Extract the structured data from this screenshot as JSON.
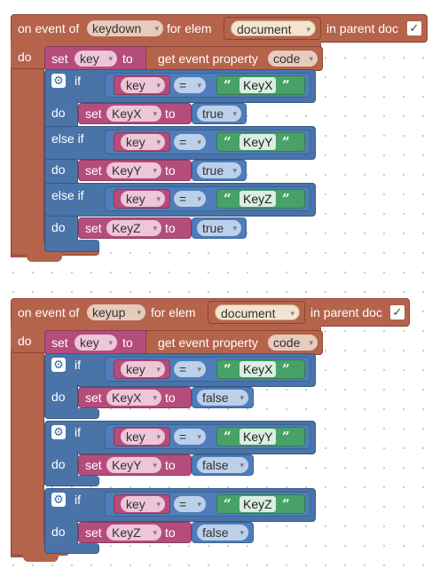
{
  "icons": {
    "gear": "gear-icon",
    "check": "checkmark-icon",
    "dropdown": "chevron-down-icon"
  },
  "colors": {
    "event": "#b5634b",
    "variable": "#b54d7c",
    "control": "#4a74a8",
    "logic": "#4f7db9",
    "text": "#48a268"
  },
  "labels": {
    "on_event_of": "on event of",
    "for_elem": "for elem",
    "in_parent_doc": "in parent doc",
    "do": "do",
    "set": "set",
    "to": "to",
    "get_event_property": "get event property",
    "if": "if",
    "else_if": "else if",
    "open_quote": "“",
    "close_quote": "”",
    "check": "✓",
    "gear": "⚙"
  },
  "block1": {
    "event": "keydown",
    "elem": "document",
    "property": "code",
    "variable": "key",
    "branches": [
      {
        "var": "key",
        "op": "=",
        "text": "KeyX",
        "set_var": "KeyX",
        "value": "true"
      },
      {
        "var": "key",
        "op": "=",
        "text": "KeyY",
        "set_var": "KeyY",
        "value": "true"
      },
      {
        "var": "key",
        "op": "=",
        "text": "KeyZ",
        "set_var": "KeyZ",
        "value": "true"
      }
    ]
  },
  "block2": {
    "event": "keyup",
    "elem": "document",
    "property": "code",
    "variable": "key",
    "branches": [
      {
        "var": "key",
        "op": "=",
        "text": "KeyX",
        "set_var": "KeyX",
        "value": "false"
      },
      {
        "var": "key",
        "op": "=",
        "text": "KeyY",
        "set_var": "KeyY",
        "value": "false"
      },
      {
        "var": "key",
        "op": "=",
        "text": "KeyZ",
        "set_var": "KeyZ",
        "value": "false"
      }
    ]
  }
}
